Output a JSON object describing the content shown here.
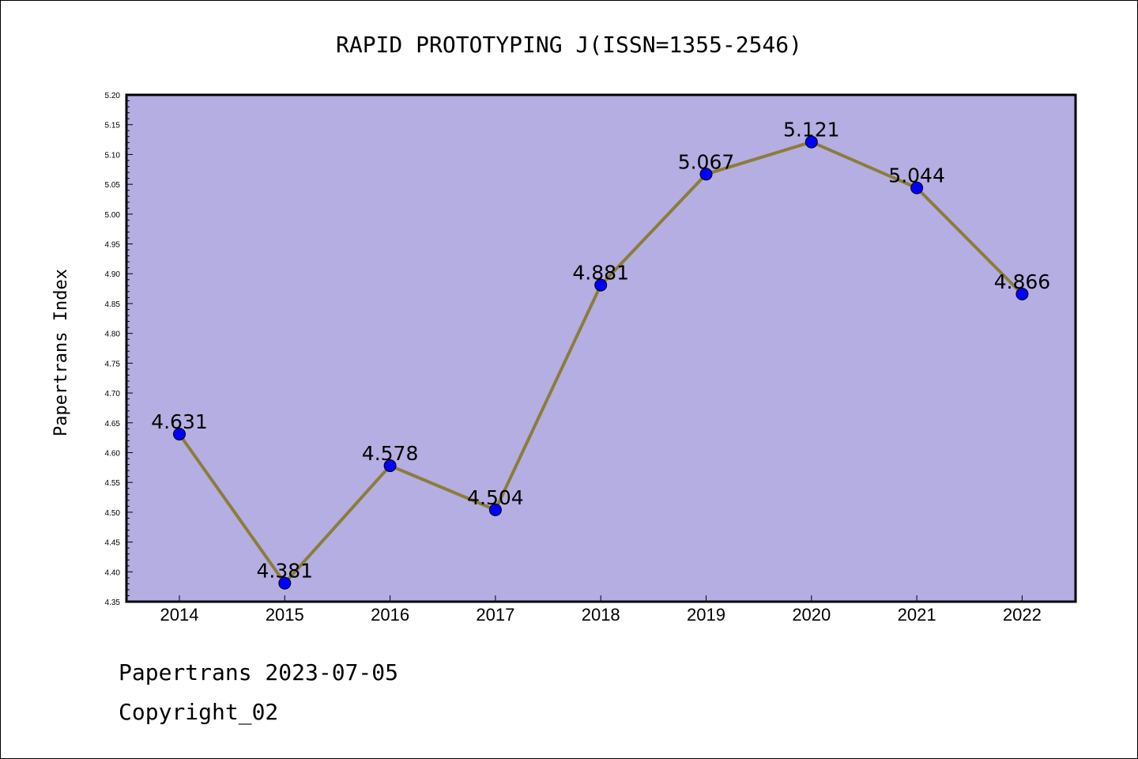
{
  "chart_data": {
    "type": "line",
    "title": "RAPID PROTOTYPING J(ISSN=1355-2546)",
    "ylabel": "Papertrans Index",
    "xlabel": "",
    "categories": [
      "2014",
      "2015",
      "2016",
      "2017",
      "2018",
      "2019",
      "2020",
      "2021",
      "2022"
    ],
    "values": [
      4.631,
      4.381,
      4.578,
      4.504,
      4.881,
      5.067,
      5.121,
      5.044,
      4.866
    ],
    "data_labels": [
      "4.631",
      "4.381",
      "4.578",
      "4.504",
      "4.881",
      "5.067",
      "5.121",
      "5.044",
      "4.866"
    ],
    "ylim": [
      4.35,
      5.2
    ],
    "ytick_step": 0.05,
    "yticks": [
      "4.35",
      "4.40",
      "4.45",
      "4.50",
      "4.55",
      "4.60",
      "4.65",
      "4.70",
      "4.75",
      "4.80",
      "4.85",
      "4.90",
      "4.95",
      "5.00",
      "5.05",
      "5.10",
      "5.15",
      "5.20"
    ],
    "grid": false,
    "legend": "none",
    "colors": {
      "plot_background": "#b5aee2",
      "line": "#8b7d3a",
      "marker": "#0000ff",
      "axis": "#000000"
    }
  },
  "footer": {
    "line1": "Papertrans 2023-07-05",
    "line2": "Copyright_02"
  }
}
